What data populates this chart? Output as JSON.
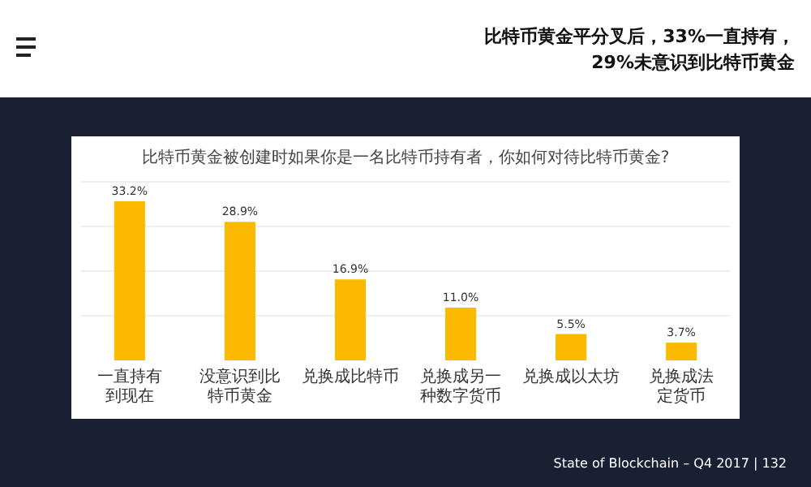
{
  "chart_data": {
    "type": "bar",
    "title": "比特币黄金被创建时如果你是一名比特币持有者，你如何对待比特币黄金?",
    "subtitle": "比特币黄金平分叉后，33%一直持有，29%未意识到比特币黄金",
    "categories": [
      "一直持有到现在",
      "没意识到比特币黄金",
      "兑换成比特币",
      "兑换成另一种数字货币",
      "兑换成以太坊",
      "兑换成法定货币"
    ],
    "values": [
      33.2,
      28.9,
      16.9,
      11.0,
      5.5,
      3.7
    ],
    "value_labels": [
      "33.2%",
      "28.9%",
      "16.9%",
      "11.0%",
      "5.5%",
      "3.7%"
    ],
    "color": "#fbb900",
    "annotations": [
      "State of Blockchain – Q4 2017  |  132"
    ]
  }
}
